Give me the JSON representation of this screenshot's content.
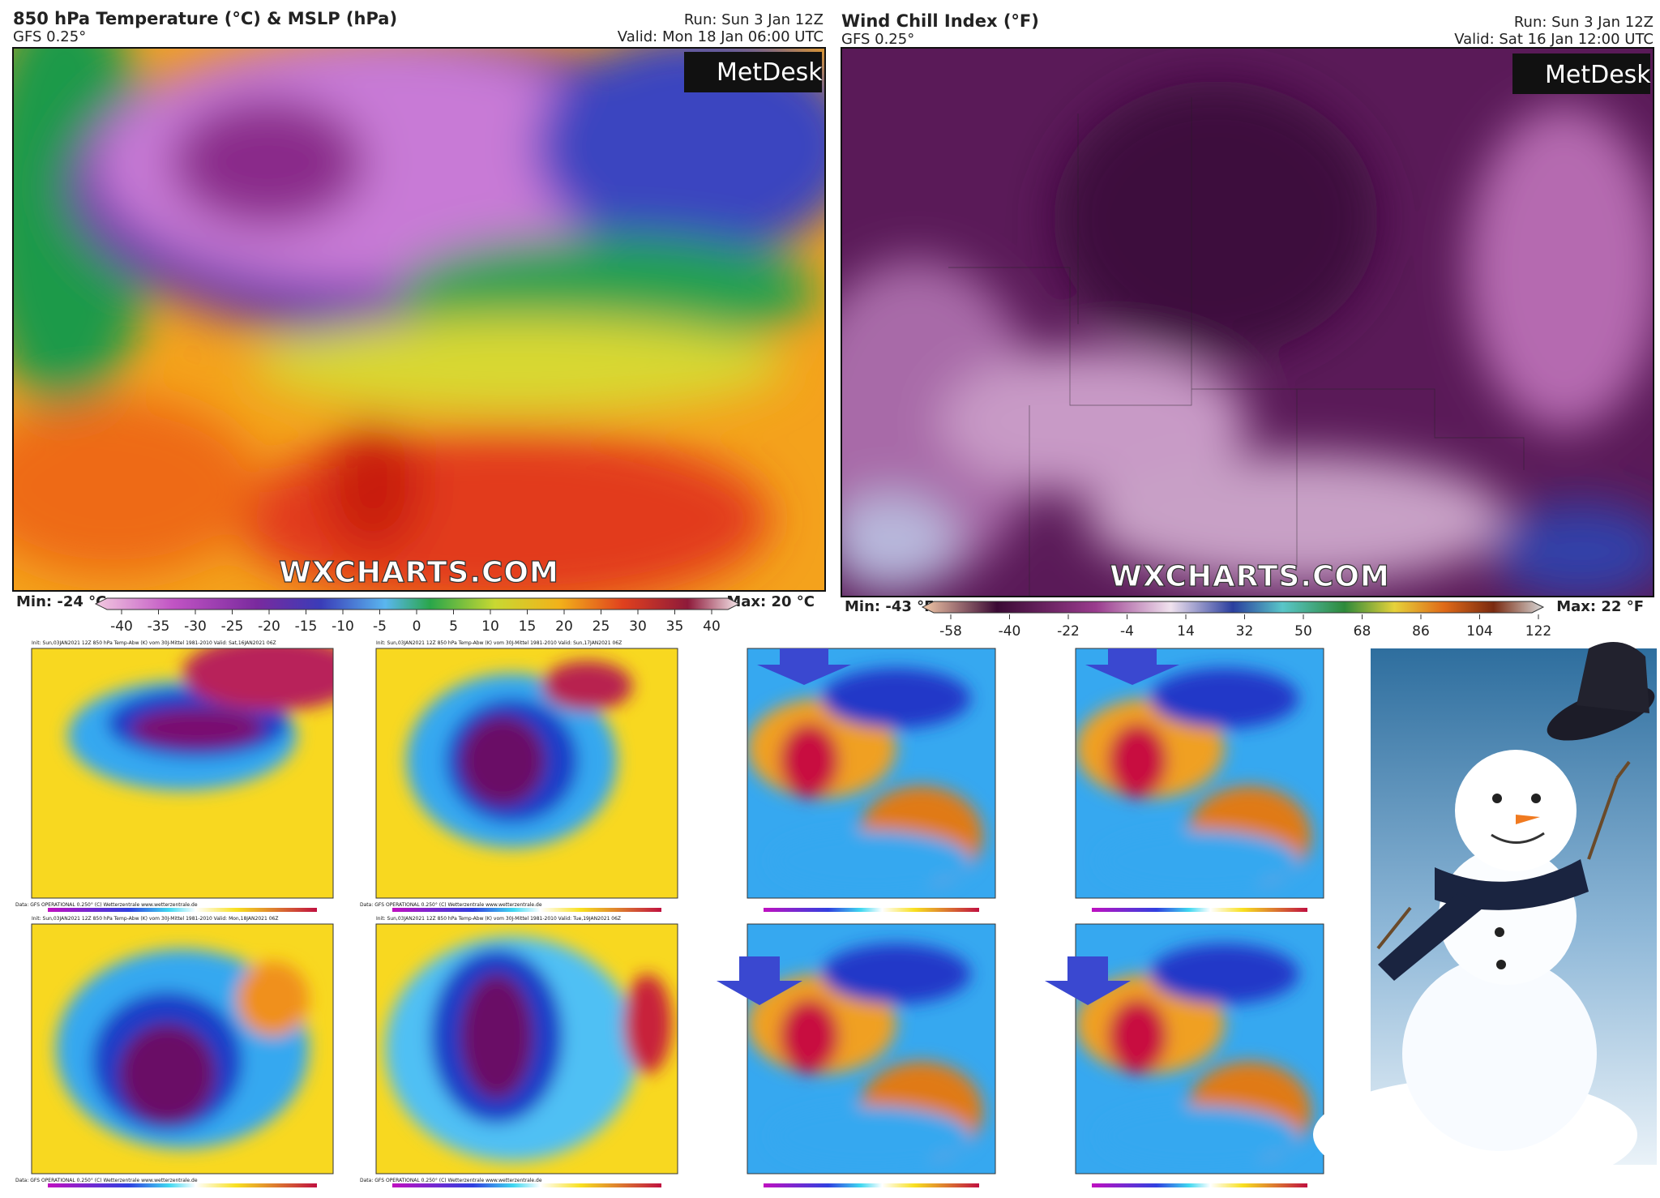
{
  "panels": [
    {
      "title": "850 hPa Temperature (°C) & MSLP (hPa)",
      "model": "GFS 0.25°",
      "run": "Run: Sun 3 Jan 12Z",
      "valid": "Valid: Mon 18 Jan 06:00 UTC",
      "min": "Min: -24 °C",
      "max": "Max: 20 °C",
      "colorbar_ticks": [
        -40,
        -35,
        -30,
        -25,
        -20,
        -15,
        -10,
        -5,
        0,
        5,
        10,
        15,
        20,
        25,
        30,
        35,
        40
      ],
      "watermark": "WXCHARTS.COM",
      "logo": "MetDesk"
    },
    {
      "title": "Wind Chill Index (°F)",
      "model": "GFS 0.25°",
      "run": "Run: Sun 3 Jan 12Z",
      "valid": "Valid: Sat 16 Jan 12:00 UTC",
      "min": "Min: -43 °F",
      "max": "Max: 22 °F",
      "colorbar_ticks": [
        -58,
        -40,
        -22,
        -4,
        14,
        32,
        50,
        68,
        86,
        104,
        122
      ],
      "watermark": "WXCHARTS.COM",
      "logo": "MetDesk"
    }
  ],
  "small_maps": [
    {
      "header": "Init: Sun,03JAN2021 12Z 850 hPa Temp-Abw (K) vom 30J-Mittel 1981-2010 Valid: Sat,16JAN2021 06Z",
      "footer": "Data: GFS OPERATIONAL 0.250° (C) Wetterzentrale www.wetterzentrale.de"
    },
    {
      "header": "Init: Sun,03JAN2021 12Z 850 hPa Temp-Abw (K) vom 30J-Mittel 1981-2010 Valid: Sun,17JAN2021 06Z",
      "footer": "Data: GFS OPERATIONAL 0.250° (C) Wetterzentrale www.wetterzentrale.de"
    },
    {
      "header": "Init: Sun,03JAN2021 12Z 850 hPa Temp-Abw (K) vom 30J-Mittel 1981-2010 Valid: Mon,18JAN2021 06Z",
      "footer": "Data: GFS OPERATIONAL 0.250° (C) Wetterzentrale www.wetterzentrale.de"
    },
    {
      "header": "Init: Sun,03JAN2021 12Z 850 hPa Temp-Abw (K) vom 30J-Mittel 1981-2010 Valid: Tue,19JAN2021 06Z",
      "footer": "Data: GFS OPERATIONAL 0.250° (C) Wetterzentrale www.wetterzentrale.de"
    }
  ]
}
